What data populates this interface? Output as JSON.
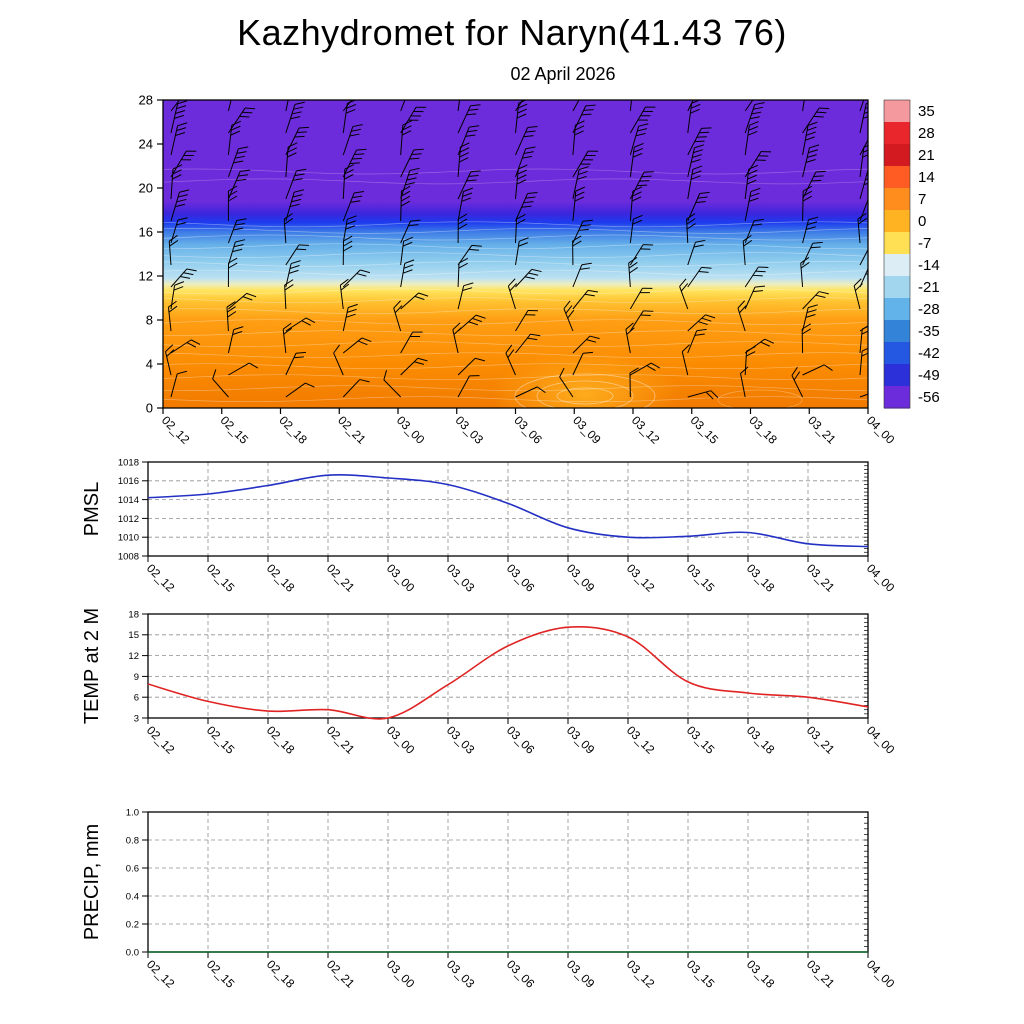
{
  "header": {
    "title": "Kazhydromet for Naryn(41.43 76)",
    "subtitle": "02 April 2026"
  },
  "time_labels": [
    "02_12",
    "02_15",
    "02_18",
    "02_21",
    "03_00",
    "03_03",
    "03_06",
    "03_09",
    "03_12",
    "03_15",
    "03_18",
    "03_21",
    "04_00"
  ],
  "chart_data": [
    {
      "type": "heatmap",
      "name": "temperature-height-cross-section",
      "title": "",
      "x": [
        "02_12",
        "02_15",
        "02_18",
        "02_21",
        "03_00",
        "03_03",
        "03_06",
        "03_09",
        "03_12",
        "03_15",
        "03_18",
        "03_21",
        "04_00"
      ],
      "ylabel": "",
      "ylim": [
        0,
        28
      ],
      "yticks": [
        0,
        4,
        8,
        12,
        16,
        20,
        24,
        28
      ],
      "legend_position": "right",
      "colorbar_ticks": [
        "35",
        "28",
        "21",
        "14",
        "7",
        "0",
        "-7",
        "-14",
        "-21",
        "-28",
        "-35",
        "-42",
        "-49",
        "-56"
      ],
      "colorbar_colors": [
        "#f4999e",
        "#e8262c",
        "#d31a20",
        "#fe5c22",
        "#ff8d1e",
        "#ffb323",
        "#ffdf54",
        "#dcedf5",
        "#a2d6ef",
        "#62b3e9",
        "#3384d9",
        "#2457e2",
        "#2c30d8",
        "#6c2cdc"
      ],
      "vertical_gradient": [
        {
          "pos": 0.0,
          "color": "#6c2cdc"
        },
        {
          "pos": 0.33,
          "color": "#6c2cdc"
        },
        {
          "pos": 0.368,
          "color": "#3c25dc"
        },
        {
          "pos": 0.398,
          "color": "#1d3cee"
        },
        {
          "pos": 0.43,
          "color": "#3f7ee6"
        },
        {
          "pos": 0.47,
          "color": "#66b0e9"
        },
        {
          "pos": 0.525,
          "color": "#90cdee"
        },
        {
          "pos": 0.578,
          "color": "#bbe1f2"
        },
        {
          "pos": 0.598,
          "color": "#eeeec0"
        },
        {
          "pos": 0.618,
          "color": "#ffe45f"
        },
        {
          "pos": 0.655,
          "color": "#ffc231"
        },
        {
          "pos": 0.715,
          "color": "#ff9e14"
        },
        {
          "pos": 0.86,
          "color": "#fb8c02"
        },
        {
          "pos": 1.0,
          "color": "#f17a00"
        }
      ],
      "wind_levels": [
        {
          "y": 1,
          "angle": 75,
          "feathers": 1,
          "spread": 60
        },
        {
          "y": 3,
          "angle": 70,
          "feathers": 1,
          "spread": 45
        },
        {
          "y": 5,
          "angle": 68,
          "feathers": 2,
          "spread": 35
        },
        {
          "y": 7,
          "angle": 72,
          "feathers": 2,
          "spread": 40
        },
        {
          "y": 9,
          "angle": 75,
          "feathers": 2,
          "spread": 35
        },
        {
          "y": 11,
          "angle": 70,
          "feathers": 2,
          "spread": 25
        },
        {
          "y": 13,
          "angle": 75,
          "feathers": 2,
          "spread": 20
        },
        {
          "y": 15,
          "angle": 80,
          "feathers": 2,
          "spread": 15
        },
        {
          "y": 17,
          "angle": 78,
          "feathers": 3,
          "spread": 12
        },
        {
          "y": 19,
          "angle": 75,
          "feathers": 3,
          "spread": 12
        },
        {
          "y": 21,
          "angle": 72,
          "feathers": 3,
          "spread": 14
        },
        {
          "y": 23,
          "angle": 74,
          "feathers": 3,
          "spread": 12
        },
        {
          "y": 25,
          "angle": 70,
          "feathers": 3,
          "spread": 14
        },
        {
          "y": 27,
          "angle": 68,
          "feathers": 3,
          "spread": 16
        }
      ]
    },
    {
      "type": "line",
      "name": "pmsl",
      "ylabel": "PMSL",
      "ylim": [
        1008,
        1018
      ],
      "yticks": [
        "1008",
        "1010",
        "1012",
        "1014",
        "1016",
        "1018"
      ],
      "x": [
        "02_12",
        "02_15",
        "02_18",
        "02_21",
        "03_00",
        "03_03",
        "03_06",
        "03_09",
        "03_12",
        "03_15",
        "03_18",
        "03_21",
        "04_00"
      ],
      "values": [
        1014.2,
        1014.6,
        1015.5,
        1016.6,
        1016.3,
        1015.6,
        1013.6,
        1011.0,
        1010.0,
        1010.1,
        1010.5,
        1009.3,
        1009.0
      ],
      "line_color": "#2330c4"
    },
    {
      "type": "line",
      "name": "temp-at-2m",
      "ylabel": "TEMP at 2 M",
      "ylim": [
        3,
        18
      ],
      "yticks": [
        "3",
        "6",
        "9",
        "12",
        "15",
        "18"
      ],
      "x": [
        "02_12",
        "02_15",
        "02_18",
        "02_21",
        "03_00",
        "03_03",
        "03_06",
        "03_09",
        "03_12",
        "03_15",
        "03_18",
        "03_21",
        "04_00"
      ],
      "values": [
        7.9,
        5.4,
        4.0,
        4.2,
        3.0,
        7.8,
        13.4,
        16.1,
        14.7,
        8.2,
        6.6,
        6.0,
        4.6
      ],
      "line_color": "#e02424"
    },
    {
      "type": "line",
      "name": "precip",
      "ylabel": "PRECIP, mm",
      "ylim": [
        0.0,
        1.0
      ],
      "yticks": [
        "0.0",
        "0.2",
        "0.4",
        "0.6",
        "0.8",
        "1.0"
      ],
      "x": [
        "02_12",
        "02_15",
        "02_18",
        "02_21",
        "03_00",
        "03_03",
        "03_06",
        "03_09",
        "03_12",
        "03_15",
        "03_18",
        "03_21",
        "04_00"
      ],
      "values": [
        0,
        0,
        0,
        0,
        0,
        0,
        0,
        0,
        0,
        0,
        0,
        0,
        0
      ],
      "line_color": "#0b6b2d"
    }
  ],
  "colors": {
    "grid": "#909090",
    "axis": "#000000",
    "background": "#ffffff"
  }
}
